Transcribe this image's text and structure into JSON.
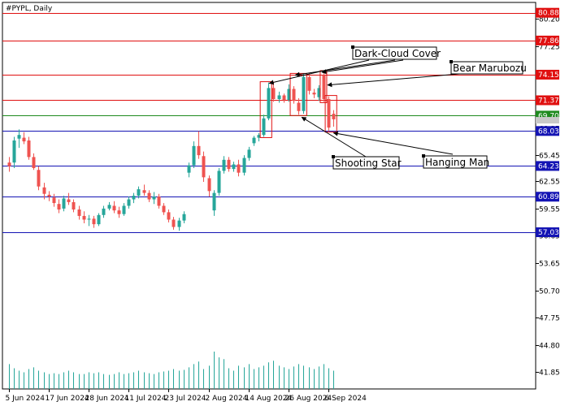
{
  "chart_data": {
    "type": "candlestick",
    "title": "#PYPL, Daily",
    "ylim": [
      40.0,
      82.0
    ],
    "y_ticks": [
      80.2,
      77.25,
      74.15,
      71.37,
      68.35,
      65.45,
      62.55,
      59.55,
      56.65,
      53.65,
      50.7,
      47.75,
      44.8,
      41.85
    ],
    "x_ticks": [
      {
        "i": 0,
        "label": "5 Jun 2024"
      },
      {
        "i": 8,
        "label": "17 Jun 2024"
      },
      {
        "i": 16,
        "label": "28 Jun 2024"
      },
      {
        "i": 24,
        "label": "11 Jul 2024"
      },
      {
        "i": 32,
        "label": "23 Jul 2024"
      },
      {
        "i": 40,
        "label": "2 Aug 2024"
      },
      {
        "i": 48,
        "label": "14 Aug 2024"
      },
      {
        "i": 56,
        "label": "26 Aug 2024"
      },
      {
        "i": 64,
        "label": "6 Sep 2024"
      }
    ],
    "levels": [
      {
        "value": 80.88,
        "color": "#e01010",
        "label": "80.88"
      },
      {
        "value": 77.86,
        "color": "#e01010",
        "label": "77.86"
      },
      {
        "value": 74.15,
        "color": "#e01010",
        "label": "74.15"
      },
      {
        "value": 71.37,
        "color": "#e01010",
        "label": "71.37"
      },
      {
        "value": 69.7,
        "color": "#1e8a1e",
        "label": "69.70"
      },
      {
        "value": 68.03,
        "color": "#1414b4",
        "label": "68.03"
      },
      {
        "value": 64.23,
        "color": "#1414b4",
        "label": "64.23"
      },
      {
        "value": 60.89,
        "color": "#1414b4",
        "label": "60.89"
      },
      {
        "value": 57.03,
        "color": "#1414b4",
        "label": "57.03"
      }
    ],
    "current_price": {
      "value": 69.2
    },
    "candles": [
      {
        "o": 64.6,
        "h": 65.2,
        "l": 63.6,
        "c": 64.2
      },
      {
        "o": 64.6,
        "h": 67.4,
        "l": 64.0,
        "c": 67.0
      },
      {
        "o": 67.2,
        "h": 68.2,
        "l": 66.2,
        "c": 67.6
      },
      {
        "o": 67.3,
        "h": 67.9,
        "l": 66.6,
        "c": 66.9
      },
      {
        "o": 67.0,
        "h": 67.4,
        "l": 64.9,
        "c": 65.2
      },
      {
        "o": 65.2,
        "h": 65.6,
        "l": 63.8,
        "c": 64.0
      },
      {
        "o": 63.8,
        "h": 64.2,
        "l": 61.6,
        "c": 62.0
      },
      {
        "o": 61.9,
        "h": 62.4,
        "l": 60.6,
        "c": 61.2
      },
      {
        "o": 61.1,
        "h": 61.5,
        "l": 60.4,
        "c": 60.9
      },
      {
        "o": 60.8,
        "h": 61.2,
        "l": 59.8,
        "c": 60.2
      },
      {
        "o": 60.1,
        "h": 60.6,
        "l": 59.1,
        "c": 59.5
      },
      {
        "o": 59.6,
        "h": 61.0,
        "l": 59.3,
        "c": 60.7
      },
      {
        "o": 60.6,
        "h": 61.3,
        "l": 60.0,
        "c": 60.3
      },
      {
        "o": 60.3,
        "h": 60.6,
        "l": 59.2,
        "c": 59.5
      },
      {
        "o": 59.5,
        "h": 59.9,
        "l": 58.4,
        "c": 58.8
      },
      {
        "o": 58.8,
        "h": 59.3,
        "l": 58.0,
        "c": 58.4
      },
      {
        "o": 58.4,
        "h": 58.9,
        "l": 57.7,
        "c": 58.5
      },
      {
        "o": 58.5,
        "h": 58.8,
        "l": 57.5,
        "c": 57.9
      },
      {
        "o": 57.9,
        "h": 59.1,
        "l": 57.7,
        "c": 58.9
      },
      {
        "o": 58.9,
        "h": 59.9,
        "l": 58.6,
        "c": 59.6
      },
      {
        "o": 59.6,
        "h": 60.3,
        "l": 59.4,
        "c": 60.0
      },
      {
        "o": 59.9,
        "h": 60.4,
        "l": 59.1,
        "c": 59.4
      },
      {
        "o": 59.4,
        "h": 59.8,
        "l": 58.6,
        "c": 59.0
      },
      {
        "o": 59.0,
        "h": 60.2,
        "l": 58.8,
        "c": 59.9
      },
      {
        "o": 59.9,
        "h": 60.9,
        "l": 59.6,
        "c": 60.6
      },
      {
        "o": 60.6,
        "h": 61.3,
        "l": 60.2,
        "c": 61.0
      },
      {
        "o": 61.0,
        "h": 62.0,
        "l": 60.7,
        "c": 61.7
      },
      {
        "o": 61.6,
        "h": 62.2,
        "l": 61.0,
        "c": 61.3
      },
      {
        "o": 61.3,
        "h": 61.6,
        "l": 60.3,
        "c": 60.6
      },
      {
        "o": 60.6,
        "h": 61.4,
        "l": 60.1,
        "c": 60.9
      },
      {
        "o": 60.9,
        "h": 61.2,
        "l": 59.6,
        "c": 59.9
      },
      {
        "o": 59.9,
        "h": 60.2,
        "l": 58.9,
        "c": 59.2
      },
      {
        "o": 59.2,
        "h": 59.5,
        "l": 58.1,
        "c": 58.4
      },
      {
        "o": 58.4,
        "h": 58.7,
        "l": 57.3,
        "c": 57.6
      },
      {
        "o": 57.6,
        "h": 58.6,
        "l": 57.2,
        "c": 58.3
      },
      {
        "o": 58.3,
        "h": 59.3,
        "l": 58.0,
        "c": 59.0
      },
      {
        "o": 63.5,
        "h": 64.6,
        "l": 63.0,
        "c": 64.3
      },
      {
        "o": 64.3,
        "h": 66.9,
        "l": 64.0,
        "c": 66.4
      },
      {
        "o": 66.4,
        "h": 68.0,
        "l": 65.0,
        "c": 65.4
      },
      {
        "o": 65.3,
        "h": 65.8,
        "l": 62.5,
        "c": 63.0
      },
      {
        "o": 62.9,
        "h": 63.2,
        "l": 60.9,
        "c": 61.5
      },
      {
        "o": 59.4,
        "h": 61.6,
        "l": 58.8,
        "c": 61.3
      },
      {
        "o": 61.3,
        "h": 64.0,
        "l": 61.0,
        "c": 63.7
      },
      {
        "o": 63.7,
        "h": 65.3,
        "l": 63.4,
        "c": 64.9
      },
      {
        "o": 64.9,
        "h": 65.2,
        "l": 63.6,
        "c": 63.9
      },
      {
        "o": 63.9,
        "h": 64.7,
        "l": 63.6,
        "c": 64.4
      },
      {
        "o": 64.4,
        "h": 64.9,
        "l": 63.1,
        "c": 63.5
      },
      {
        "o": 63.5,
        "h": 65.4,
        "l": 63.2,
        "c": 65.1
      },
      {
        "o": 65.1,
        "h": 66.3,
        "l": 64.8,
        "c": 66.0
      },
      {
        "o": 66.7,
        "h": 67.5,
        "l": 66.4,
        "c": 67.3
      },
      {
        "o": 67.3,
        "h": 67.8,
        "l": 66.9,
        "c": 67.6
      },
      {
        "o": 67.6,
        "h": 69.8,
        "l": 67.4,
        "c": 69.4
      },
      {
        "o": 69.4,
        "h": 73.3,
        "l": 69.2,
        "c": 72.7
      },
      {
        "o": 72.7,
        "h": 73.4,
        "l": 71.2,
        "c": 71.5
      },
      {
        "o": 71.5,
        "h": 72.3,
        "l": 71.1,
        "c": 71.9
      },
      {
        "o": 71.9,
        "h": 72.1,
        "l": 71.1,
        "c": 71.4
      },
      {
        "o": 71.4,
        "h": 73.1,
        "l": 71.2,
        "c": 72.6
      },
      {
        "o": 72.6,
        "h": 72.9,
        "l": 71.0,
        "c": 71.3
      },
      {
        "o": 71.1,
        "h": 71.6,
        "l": 69.8,
        "c": 70.2
      },
      {
        "o": 70.2,
        "h": 74.2,
        "l": 69.9,
        "c": 73.9
      },
      {
        "o": 73.9,
        "h": 74.3,
        "l": 72.0,
        "c": 72.4
      },
      {
        "o": 72.2,
        "h": 72.6,
        "l": 71.6,
        "c": 72.0
      },
      {
        "o": 71.7,
        "h": 73.0,
        "l": 71.3,
        "c": 72.7
      },
      {
        "o": 74.1,
        "h": 74.5,
        "l": 71.2,
        "c": 71.5
      },
      {
        "o": 71.5,
        "h": 71.8,
        "l": 68.0,
        "c": 68.4
      },
      {
        "o": 69.9,
        "h": 70.3,
        "l": 68.5,
        "c": 69.3
      }
    ],
    "volume": [
      30,
      25,
      22,
      20,
      24,
      26,
      22,
      20,
      18,
      19,
      18,
      20,
      22,
      20,
      18,
      18,
      20,
      19,
      20,
      18,
      17,
      18,
      20,
      18,
      19,
      20,
      22,
      20,
      19,
      18,
      20,
      21,
      22,
      24,
      22,
      23,
      26,
      30,
      33,
      24,
      28,
      45,
      38,
      36,
      25,
      22,
      28,
      26,
      30,
      24,
      26,
      28,
      32,
      34,
      28,
      26,
      24,
      27,
      30,
      28,
      26,
      24,
      27,
      30,
      25,
      22
    ],
    "annotations": [
      {
        "text": "Dark-Cloud Cover"
      },
      {
        "text": "Bear Marubozu"
      },
      {
        "text": "Shooting Star"
      },
      {
        "text": "Hanging Man"
      }
    ]
  }
}
